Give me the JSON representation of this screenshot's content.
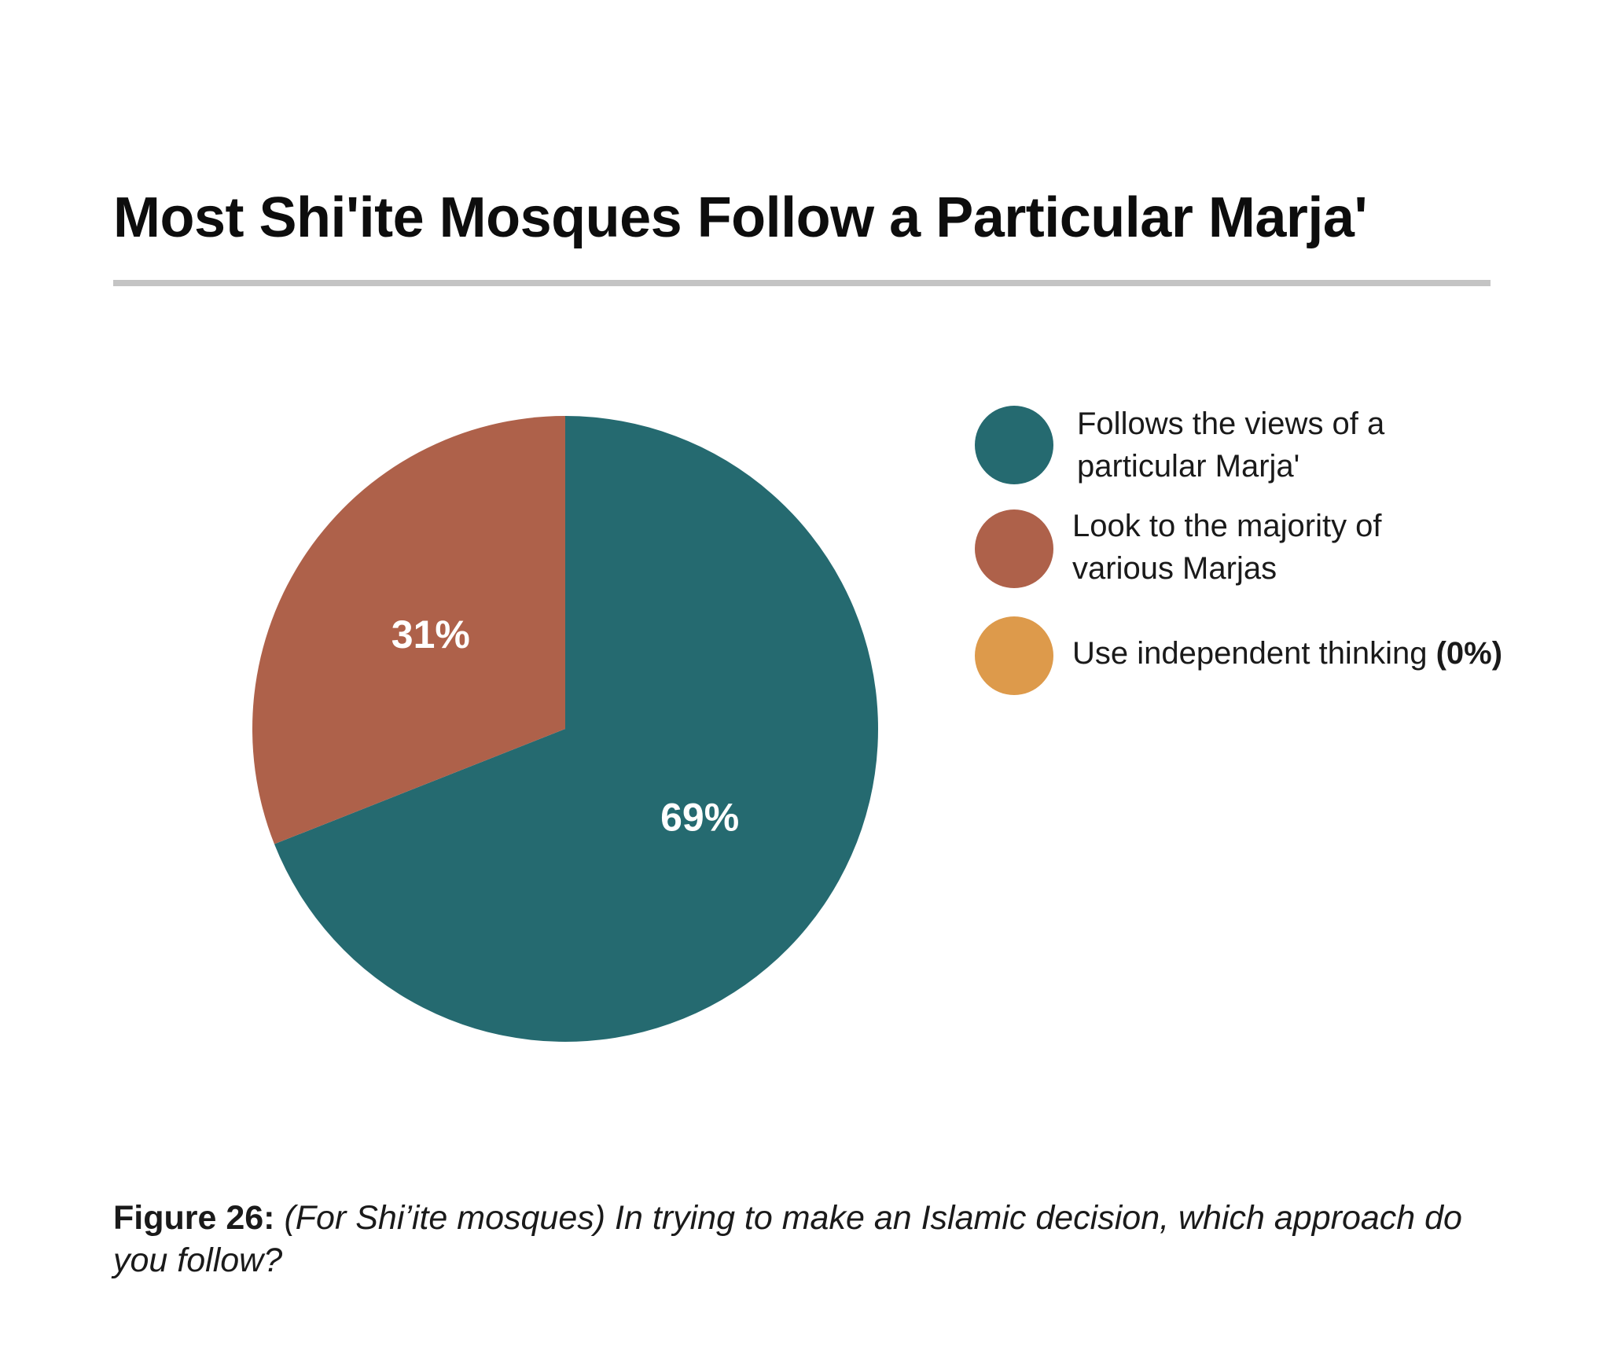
{
  "title": "Most Shi'ite Mosques Follow a Particular Marja'",
  "chart_data": {
    "type": "pie",
    "categories": [
      "Follows the views of a particular Marja'",
      "Look to the majority of various Marjas",
      "Use independent thinking"
    ],
    "values": [
      69,
      31,
      0
    ],
    "data_labels": [
      "69%",
      "31%",
      ""
    ],
    "colors": [
      "#256a70",
      "#ae614a",
      "#dd9a4b"
    ],
    "legend_position": "right",
    "legend": [
      {
        "line1": "Follows the views of a",
        "line2": "particular Marja'",
        "pct": ""
      },
      {
        "line1": "Look to the majority of",
        "line2": "various Marjas",
        "pct": ""
      },
      {
        "line1": "Use independent thinking",
        "line2": "",
        "pct": "(0%)"
      }
    ]
  },
  "caption": {
    "label": "Figure 26:",
    "text": "(For Shi’ite mosques) In trying to make an Islamic decision, which approach do you follow?"
  }
}
